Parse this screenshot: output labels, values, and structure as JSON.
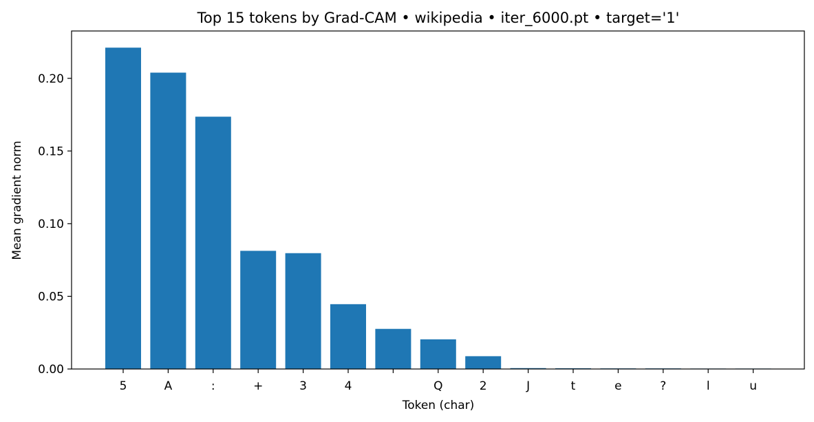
{
  "chart_data": {
    "type": "bar",
    "title": "Top 15 tokens by Grad-CAM • wikipedia • iter_6000.pt • target='1'",
    "xlabel": "Token (char)",
    "ylabel": "Mean gradient norm",
    "categories": [
      "5",
      "A",
      ":",
      "+",
      "3",
      "4",
      " ",
      "Q",
      "2",
      "J",
      "t",
      "e",
      "?",
      "l",
      "u"
    ],
    "values": [
      0.2211,
      0.2039,
      0.1736,
      0.0813,
      0.0797,
      0.0446,
      0.0276,
      0.0204,
      0.0088,
      0.0006,
      0.0005,
      0.0004,
      0.0004,
      0.0003,
      0.0003
    ],
    "ylim": [
      0,
      0.2212
    ],
    "yticks": [
      0.0,
      0.05,
      0.1,
      0.15,
      0.2
    ],
    "ytick_labels": [
      "0.00",
      "0.05",
      "0.10",
      "0.15",
      "0.20"
    ],
    "bar_color": "#1f77b4",
    "grid": false,
    "legend": false
  }
}
